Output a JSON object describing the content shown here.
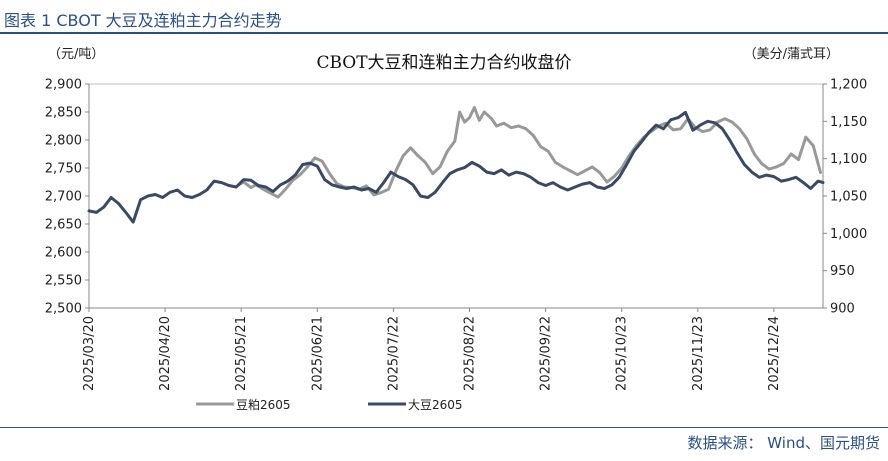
{
  "header": {
    "title": "图表 1 CBOT 大豆及连粕主力合约走势"
  },
  "footer": {
    "source": "数据来源： Wind、国元期货"
  },
  "colors": {
    "header_blue": "#2b4f8a",
    "series_meal": "#999999",
    "series_soy": "#3b4a63"
  },
  "chart_data": {
    "type": "line",
    "title": "CBOT大豆和连粕主力合约收盘价",
    "left_unit": "（元/吨）",
    "right_unit": "（美分/蒲式耳）",
    "y_left": {
      "min": 2500,
      "max": 2900,
      "ticks": [
        "2,500",
        "2,550",
        "2,600",
        "2,650",
        "2,700",
        "2,750",
        "2,800",
        "2,850",
        "2,900"
      ]
    },
    "y_right": {
      "min": 900,
      "max": 1200,
      "ticks": [
        "900",
        "950",
        "1,000",
        "1,050",
        "1,100",
        "1,150",
        "1,200"
      ]
    },
    "x_ticks": [
      "2025/03/20",
      "2025/04/20",
      "2025/05/21",
      "2025/06/21",
      "2025/07/22",
      "2025/08/22",
      "2025/09/22",
      "2025/10/23",
      "2025/11/23",
      "2025/12/24"
    ],
    "x_range": [
      "2025/03/20",
      "2026/01/13"
    ],
    "legend": [
      {
        "name": "豆粕2605",
        "color_key": "series_meal"
      },
      {
        "name": "大豆2605",
        "color_key": "series_soy"
      }
    ],
    "series": [
      {
        "name": "豆粕2605",
        "axis": "left",
        "color_key": "series_meal",
        "points": [
          [
            "2025/05/20",
            2720
          ],
          [
            "2025/05/22",
            2725
          ],
          [
            "2025/05/25",
            2715
          ],
          [
            "2025/05/27",
            2720
          ],
          [
            "2025/05/30",
            2712
          ],
          [
            "2025/06/02",
            2705
          ],
          [
            "2025/06/05",
            2698
          ],
          [
            "2025/06/08",
            2712
          ],
          [
            "2025/06/11",
            2728
          ],
          [
            "2025/06/14",
            2738
          ],
          [
            "2025/06/17",
            2752
          ],
          [
            "2025/06/20",
            2768
          ],
          [
            "2025/06/23",
            2762
          ],
          [
            "2025/06/26",
            2740
          ],
          [
            "2025/06/29",
            2722
          ],
          [
            "2025/07/02",
            2716
          ],
          [
            "2025/07/05",
            2715
          ],
          [
            "2025/07/08",
            2712
          ],
          [
            "2025/07/11",
            2718
          ],
          [
            "2025/07/14",
            2702
          ],
          [
            "2025/07/17",
            2706
          ],
          [
            "2025/07/20",
            2712
          ],
          [
            "2025/07/23",
            2745
          ],
          [
            "2025/07/26",
            2772
          ],
          [
            "2025/07/29",
            2786
          ],
          [
            "2025/08/01",
            2772
          ],
          [
            "2025/08/04",
            2760
          ],
          [
            "2025/08/07",
            2740
          ],
          [
            "2025/08/10",
            2752
          ],
          [
            "2025/08/13",
            2780
          ],
          [
            "2025/08/16",
            2798
          ],
          [
            "2025/08/18",
            2850
          ],
          [
            "2025/08/20",
            2832
          ],
          [
            "2025/08/22",
            2840
          ],
          [
            "2025/08/24",
            2858
          ],
          [
            "2025/08/26",
            2835
          ],
          [
            "2025/08/28",
            2850
          ],
          [
            "2025/08/31",
            2838
          ],
          [
            "2025/09/02",
            2825
          ],
          [
            "2025/09/05",
            2830
          ],
          [
            "2025/09/08",
            2822
          ],
          [
            "2025/09/11",
            2825
          ],
          [
            "2025/09/14",
            2820
          ],
          [
            "2025/09/17",
            2808
          ],
          [
            "2025/09/20",
            2788
          ],
          [
            "2025/09/23",
            2780
          ],
          [
            "2025/09/26",
            2760
          ],
          [
            "2025/09/29",
            2752
          ],
          [
            "2025/10/02",
            2745
          ],
          [
            "2025/10/05",
            2738
          ],
          [
            "2025/10/08",
            2745
          ],
          [
            "2025/10/11",
            2752
          ],
          [
            "2025/10/14",
            2742
          ],
          [
            "2025/10/17",
            2725
          ],
          [
            "2025/10/20",
            2735
          ],
          [
            "2025/10/23",
            2750
          ],
          [
            "2025/10/26",
            2772
          ],
          [
            "2025/10/29",
            2790
          ],
          [
            "2025/11/01",
            2805
          ],
          [
            "2025/11/04",
            2815
          ],
          [
            "2025/11/07",
            2825
          ],
          [
            "2025/11/10",
            2830
          ],
          [
            "2025/11/13",
            2818
          ],
          [
            "2025/11/16",
            2820
          ],
          [
            "2025/11/19",
            2838
          ],
          [
            "2025/11/22",
            2822
          ],
          [
            "2025/11/25",
            2815
          ],
          [
            "2025/11/28",
            2818
          ],
          [
            "2025/12/01",
            2832
          ],
          [
            "2025/12/04",
            2838
          ],
          [
            "2025/12/07",
            2832
          ],
          [
            "2025/12/10",
            2820
          ],
          [
            "2025/12/13",
            2802
          ],
          [
            "2025/12/16",
            2775
          ],
          [
            "2025/12/19",
            2758
          ],
          [
            "2025/12/22",
            2748
          ],
          [
            "2025/12/25",
            2752
          ],
          [
            "2025/12/28",
            2758
          ],
          [
            "2025/12/31",
            2775
          ],
          [
            "2026/01/03",
            2765
          ],
          [
            "2026/01/06",
            2805
          ],
          [
            "2026/01/09",
            2790
          ],
          [
            "2026/01/12",
            2742
          ]
        ]
      },
      {
        "name": "大豆2605",
        "axis": "right",
        "color_key": "series_soy",
        "points": [
          [
            "2025/03/20",
            1030
          ],
          [
            "2025/03/23",
            1028
          ],
          [
            "2025/03/26",
            1035
          ],
          [
            "2025/03/29",
            1048
          ],
          [
            "2025/04/01",
            1040
          ],
          [
            "2025/04/04",
            1028
          ],
          [
            "2025/04/07",
            1015
          ],
          [
            "2025/04/10",
            1045
          ],
          [
            "2025/04/13",
            1050
          ],
          [
            "2025/04/16",
            1052
          ],
          [
            "2025/04/19",
            1048
          ],
          [
            "2025/04/22",
            1055
          ],
          [
            "2025/04/25",
            1058
          ],
          [
            "2025/04/28",
            1050
          ],
          [
            "2025/05/01",
            1048
          ],
          [
            "2025/05/04",
            1052
          ],
          [
            "2025/05/07",
            1058
          ],
          [
            "2025/05/10",
            1070
          ],
          [
            "2025/05/13",
            1068
          ],
          [
            "2025/05/16",
            1064
          ],
          [
            "2025/05/19",
            1062
          ],
          [
            "2025/05/22",
            1072
          ],
          [
            "2025/05/25",
            1071
          ],
          [
            "2025/05/28",
            1064
          ],
          [
            "2025/05/31",
            1062
          ],
          [
            "2025/06/03",
            1056
          ],
          [
            "2025/06/06",
            1065
          ],
          [
            "2025/06/09",
            1070
          ],
          [
            "2025/06/12",
            1078
          ],
          [
            "2025/06/15",
            1092
          ],
          [
            "2025/06/18",
            1094
          ],
          [
            "2025/06/21",
            1090
          ],
          [
            "2025/06/24",
            1072
          ],
          [
            "2025/06/27",
            1065
          ],
          [
            "2025/06/30",
            1062
          ],
          [
            "2025/07/03",
            1060
          ],
          [
            "2025/07/06",
            1062
          ],
          [
            "2025/07/09",
            1058
          ],
          [
            "2025/07/12",
            1060
          ],
          [
            "2025/07/15",
            1055
          ],
          [
            "2025/07/18",
            1068
          ],
          [
            "2025/07/21",
            1082
          ],
          [
            "2025/07/24",
            1076
          ],
          [
            "2025/07/27",
            1072
          ],
          [
            "2025/07/30",
            1065
          ],
          [
            "2025/08/02",
            1050
          ],
          [
            "2025/08/05",
            1048
          ],
          [
            "2025/08/08",
            1055
          ],
          [
            "2025/08/11",
            1068
          ],
          [
            "2025/08/14",
            1080
          ],
          [
            "2025/08/17",
            1085
          ],
          [
            "2025/08/20",
            1088
          ],
          [
            "2025/08/23",
            1095
          ],
          [
            "2025/08/26",
            1090
          ],
          [
            "2025/08/29",
            1082
          ],
          [
            "2025/09/01",
            1080
          ],
          [
            "2025/09/04",
            1085
          ],
          [
            "2025/09/07",
            1078
          ],
          [
            "2025/09/10",
            1082
          ],
          [
            "2025/09/13",
            1080
          ],
          [
            "2025/09/16",
            1075
          ],
          [
            "2025/09/19",
            1068
          ],
          [
            "2025/09/22",
            1064
          ],
          [
            "2025/09/25",
            1068
          ],
          [
            "2025/09/28",
            1062
          ],
          [
            "2025/10/01",
            1058
          ],
          [
            "2025/10/04",
            1062
          ],
          [
            "2025/10/07",
            1066
          ],
          [
            "2025/10/10",
            1068
          ],
          [
            "2025/10/13",
            1062
          ],
          [
            "2025/10/16",
            1060
          ],
          [
            "2025/10/19",
            1065
          ],
          [
            "2025/10/22",
            1075
          ],
          [
            "2025/10/25",
            1092
          ],
          [
            "2025/10/28",
            1110
          ],
          [
            "2025/10/31",
            1122
          ],
          [
            "2025/11/03",
            1135
          ],
          [
            "2025/11/06",
            1145
          ],
          [
            "2025/11/09",
            1140
          ],
          [
            "2025/11/12",
            1152
          ],
          [
            "2025/11/15",
            1155
          ],
          [
            "2025/11/18",
            1162
          ],
          [
            "2025/11/21",
            1138
          ],
          [
            "2025/11/24",
            1145
          ],
          [
            "2025/11/27",
            1150
          ],
          [
            "2025/11/30",
            1148
          ],
          [
            "2025/12/03",
            1140
          ],
          [
            "2025/12/06",
            1125
          ],
          [
            "2025/12/09",
            1108
          ],
          [
            "2025/12/12",
            1092
          ],
          [
            "2025/12/15",
            1082
          ],
          [
            "2025/12/18",
            1075
          ],
          [
            "2025/12/21",
            1078
          ],
          [
            "2025/12/24",
            1076
          ],
          [
            "2025/12/27",
            1070
          ],
          [
            "2025/12/30",
            1072
          ],
          [
            "2026/01/02",
            1075
          ],
          [
            "2026/01/05",
            1068
          ],
          [
            "2026/01/08",
            1060
          ],
          [
            "2026/01/11",
            1070
          ],
          [
            "2026/01/13",
            1068
          ]
        ]
      }
    ]
  }
}
